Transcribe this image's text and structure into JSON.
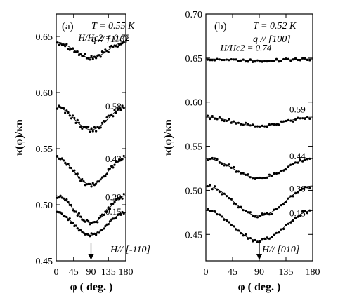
{
  "chart_data": [
    {
      "type": "scatter",
      "panel_label": "(a)",
      "annotation_T": "T = 0.55 K",
      "annotation_q": "q // [110]",
      "field_note": "H// [-110]",
      "xlabel": "φ ( deg. )",
      "ylabel": "κ(φ)/κn",
      "xlim": [
        0,
        180
      ],
      "ylim": [
        0.45,
        0.67
      ],
      "x_ticks": [
        "0",
        "45",
        "90",
        "135",
        "180"
      ],
      "y_ticks": [
        "0.45",
        "0.50",
        "0.55",
        "0.60",
        "0.65"
      ],
      "arrow_at_x": 90,
      "series": [
        {
          "name": "H/Hc2 = 0.72",
          "center": 0.638,
          "amplitude": 0.007,
          "noise": 0.0025
        },
        {
          "name": "0.58",
          "center": 0.577,
          "amplitude": 0.01,
          "noise": 0.0025
        },
        {
          "name": "0.43",
          "center": 0.53,
          "amplitude": 0.012,
          "noise": 0.002
        },
        {
          "name": "0.29",
          "center": 0.496,
          "amplitude": 0.012,
          "noise": 0.002
        },
        {
          "name": "0.15",
          "center": 0.483,
          "amplitude": 0.01,
          "noise": 0.0015
        }
      ]
    },
    {
      "type": "scatter",
      "panel_label": "(b)",
      "annotation_T": "T = 0.52 K",
      "annotation_q": "q // [100]",
      "field_note": "H// [010]",
      "xlabel": "φ ( deg. )",
      "ylabel": "κ(φ)/κn",
      "xlim": [
        0,
        180
      ],
      "ylim": [
        0.42,
        0.7
      ],
      "x_ticks": [
        "0",
        "45",
        "90",
        "135",
        "180"
      ],
      "y_ticks": [
        "0.45",
        "0.50",
        "0.55",
        "0.60",
        "0.65",
        "0.70"
      ],
      "arrow_at_x": 90,
      "series": [
        {
          "name": "H/Hc2 = 0.74",
          "center": 0.648,
          "amplitude": 0.001,
          "noise": 0.0015
        },
        {
          "name": "0.59",
          "center": 0.578,
          "amplitude": 0.005,
          "noise": 0.002
        },
        {
          "name": "0.44",
          "center": 0.525,
          "amplitude": 0.011,
          "noise": 0.002
        },
        {
          "name": "0.30",
          "center": 0.488,
          "amplitude": 0.017,
          "noise": 0.0025
        },
        {
          "name": "0.15",
          "center": 0.46,
          "amplitude": 0.017,
          "noise": 0.002
        }
      ]
    }
  ]
}
